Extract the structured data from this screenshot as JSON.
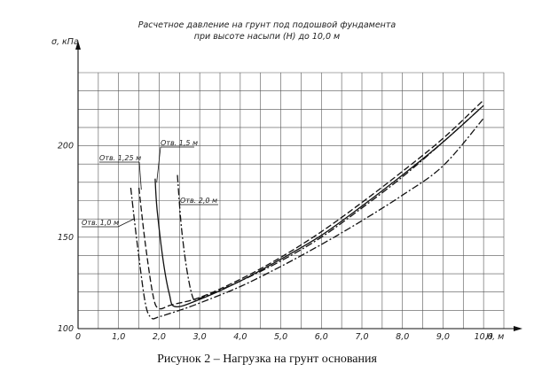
{
  "chart_data": {
    "type": "line",
    "title_lines": [
      "Расчетное давление на грунт под подошвой фундамента",
      "при высоте насыпи (H) до 10,0 м"
    ],
    "ylabel": "σ, кПа",
    "xlabel": "H, м",
    "xlim": [
      0,
      10.5
    ],
    "ylim": [
      100,
      240
    ],
    "x_ticks": [
      0,
      1,
      2,
      3,
      4,
      5,
      6,
      7,
      8,
      9,
      10
    ],
    "x_tick_labels": [
      "0",
      "1,0",
      "2,0",
      "3,0",
      "4,0",
      "5,0",
      "6,0",
      "7,0",
      "8,0",
      "9,0",
      "10,0"
    ],
    "y_ticks": [
      100,
      150,
      200
    ],
    "y_tick_labels": [
      "100",
      "150",
      "200"
    ],
    "grid": true,
    "series": [
      {
        "name": "Отв. 1,0 м",
        "style": "dashdot",
        "points": [
          [
            1.3,
            177
          ],
          [
            1.45,
            148
          ],
          [
            1.65,
            115
          ],
          [
            1.8,
            106
          ],
          [
            2.0,
            106.5
          ],
          [
            2.5,
            110
          ],
          [
            3.0,
            114
          ],
          [
            4.0,
            123
          ],
          [
            5.0,
            134
          ],
          [
            6.0,
            146
          ],
          [
            7.0,
            159
          ],
          [
            8.0,
            173
          ],
          [
            9.0,
            189
          ],
          [
            10.0,
            215
          ]
        ]
      },
      {
        "name": "Отв. 1,25 м",
        "style": "dashed",
        "points": [
          [
            1.5,
            177
          ],
          [
            1.65,
            148
          ],
          [
            1.85,
            118
          ],
          [
            2.0,
            111
          ],
          [
            2.3,
            113
          ],
          [
            3.0,
            117
          ],
          [
            4.0,
            127
          ],
          [
            5.0,
            139
          ],
          [
            6.0,
            153
          ],
          [
            7.0,
            169
          ],
          [
            8.0,
            186
          ],
          [
            9.0,
            204
          ],
          [
            10.0,
            225
          ]
        ]
      },
      {
        "name": "Отв. 1,5 м",
        "style": "solid",
        "points": [
          [
            1.9,
            182
          ],
          [
            1.95,
            165
          ],
          [
            2.1,
            137
          ],
          [
            2.25,
            119
          ],
          [
            2.4,
            112
          ],
          [
            3.0,
            116
          ],
          [
            4.0,
            126
          ],
          [
            5.0,
            138
          ],
          [
            6.0,
            151
          ],
          [
            7.0,
            167
          ],
          [
            8.0,
            184
          ],
          [
            9.0,
            202
          ],
          [
            10.0,
            222
          ]
        ]
      },
      {
        "name": "Отв. 2,0 м",
        "style": "dashdot",
        "points": [
          [
            2.45,
            184
          ],
          [
            2.55,
            155
          ],
          [
            2.7,
            130
          ],
          [
            2.85,
            116
          ],
          [
            3.0,
            116.5
          ],
          [
            4.0,
            126
          ],
          [
            5.0,
            137
          ],
          [
            6.0,
            150
          ],
          [
            7.0,
            166
          ],
          [
            8.0,
            183
          ],
          [
            9.0,
            202
          ],
          [
            10.0,
            222
          ]
        ]
      }
    ],
    "annotations": [
      "Отв. 1,0 м",
      "Отв. 1,25 м",
      "Отв. 1,5 м",
      "Отв. 2,0 м"
    ]
  },
  "caption": "Рисунок 2 – Нагрузка на грунт основания"
}
